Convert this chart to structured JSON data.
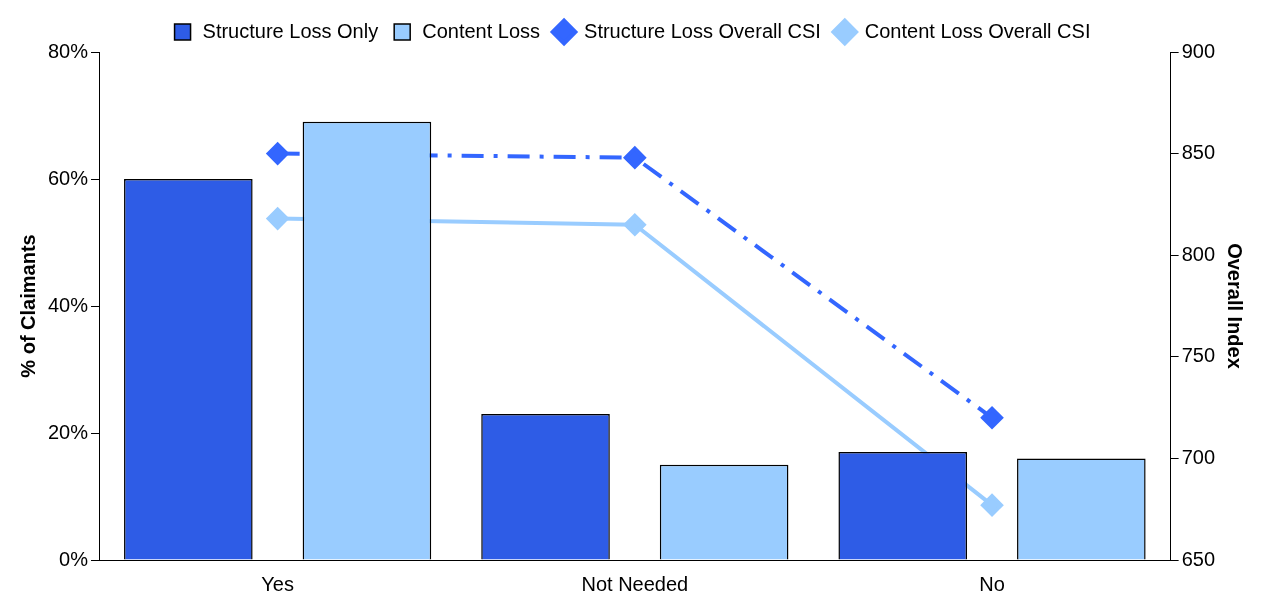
{
  "chart_data": {
    "type": "bar",
    "ylabel": "% of Claimants",
    "y2label": "Overall Index",
    "categories": [
      "Yes",
      "Not Needed",
      "No"
    ],
    "series": [
      {
        "name": "Structure Loss Only",
        "color": "#2e5ce6",
        "values": [
          60,
          23,
          17
        ]
      },
      {
        "name": "Content Loss",
        "color": "#99ccff",
        "values": [
          69,
          15,
          16
        ]
      },
      {
        "name": "Structure Loss Overall CSI",
        "type": "line",
        "axis": "y2",
        "color": "#3366ff",
        "line_style": "dashed",
        "marker": "diamond",
        "values": [
          850,
          848,
          720
        ]
      },
      {
        "name": "Content Loss Overall CSI",
        "type": "line",
        "axis": "y2",
        "color": "#99ccff",
        "line_style": "solid",
        "marker": "diamond",
        "values": [
          818,
          815,
          677
        ]
      }
    ],
    "ylim": [
      0,
      80
    ],
    "yticks": [
      {
        "value": 0,
        "label": "0%"
      },
      {
        "value": 20,
        "label": "20%"
      },
      {
        "value": 40,
        "label": "40%"
      },
      {
        "value": 60,
        "label": "60%"
      },
      {
        "value": 80,
        "label": "80%"
      }
    ],
    "y2lim": [
      650,
      900
    ],
    "y2ticks": [
      650,
      700,
      750,
      800,
      850,
      900
    ],
    "grid": false,
    "legend": "top"
  }
}
